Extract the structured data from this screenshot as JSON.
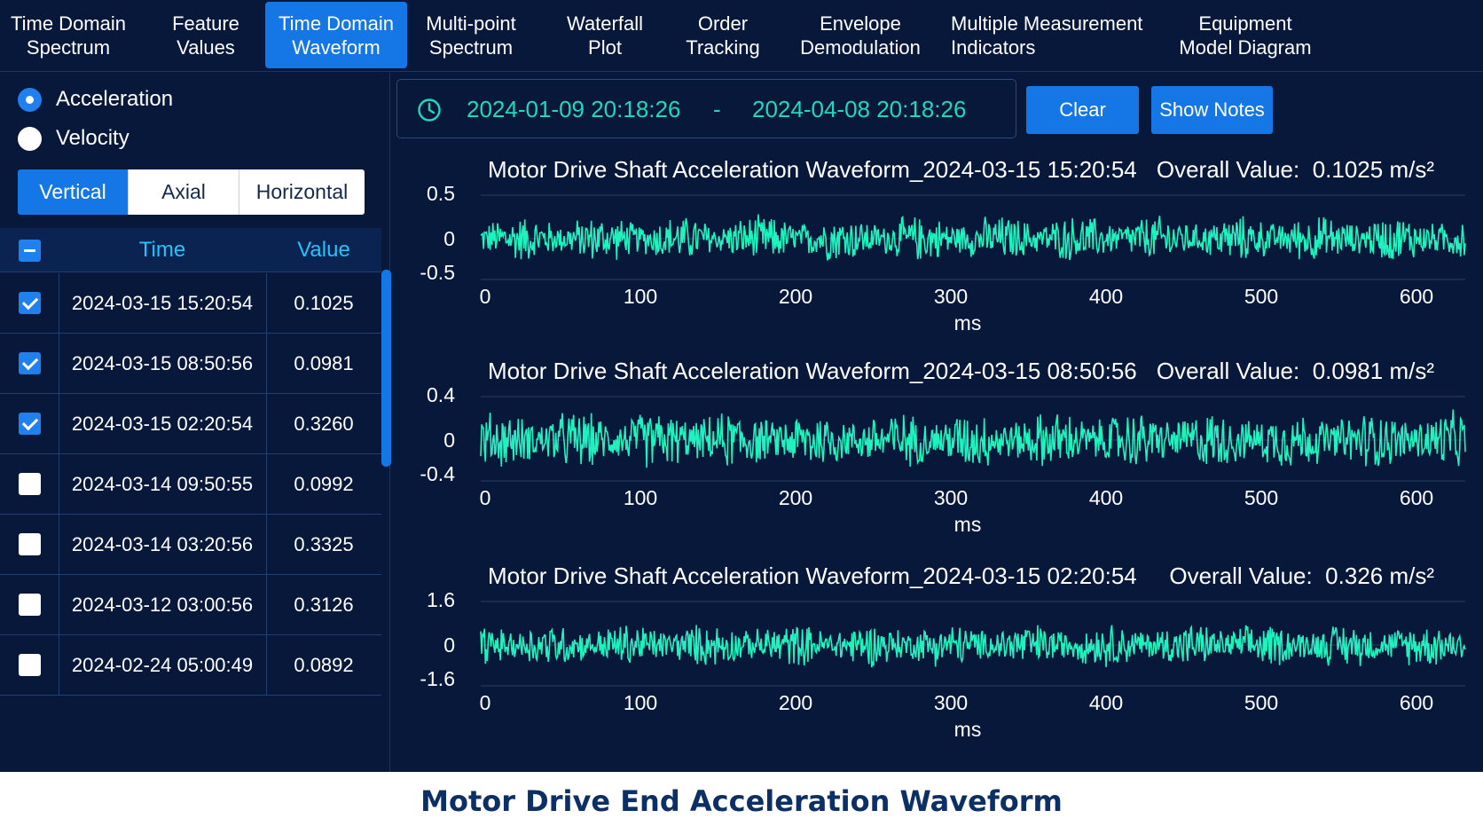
{
  "nav": {
    "tabs": [
      {
        "label": "Time Domain\nSpectrum",
        "active": false
      },
      {
        "label": "Feature\nValues",
        "active": false
      },
      {
        "label": "Time Domain\nWaveform",
        "active": true
      },
      {
        "label": "Multi-point\nSpectrum",
        "active": false
      },
      {
        "label": "Waterfall\nPlot",
        "active": false
      },
      {
        "label": "Order\nTracking",
        "active": false
      },
      {
        "label": "Envelope\nDemodulation",
        "active": false
      },
      {
        "label": "Multiple Measurement\nIndicators",
        "active": false
      },
      {
        "label": "Equipment\nModel Diagram",
        "active": false
      }
    ]
  },
  "left": {
    "measure": {
      "options": [
        "Acceleration",
        "Velocity"
      ],
      "selected": "Acceleration"
    },
    "directions": {
      "options": [
        "Vertical",
        "Axial",
        "Horizontal"
      ],
      "selected": "Vertical"
    },
    "table": {
      "header": {
        "time": "Time",
        "value": "Value",
        "select_all": "partial"
      },
      "rows": [
        {
          "time": "2024-03-15 15:20:54",
          "value": "0.1025",
          "checked": true
        },
        {
          "time": "2024-03-15 08:50:56",
          "value": "0.0981",
          "checked": true
        },
        {
          "time": "2024-03-15 02:20:54",
          "value": "0.3260",
          "checked": true
        },
        {
          "time": "2024-03-14 09:50:55",
          "value": "0.0992",
          "checked": false
        },
        {
          "time": "2024-03-14 03:20:56",
          "value": "0.3325",
          "checked": false
        },
        {
          "time": "2024-03-12 03:00:56",
          "value": "0.3126",
          "checked": false
        },
        {
          "time": "2024-02-24 05:00:49",
          "value": "0.0892",
          "checked": false
        }
      ]
    }
  },
  "toolbar": {
    "clock_icon": "clock-icon",
    "start": "2024-01-09 20:18:26",
    "separator": "-",
    "end": "2024-04-08 20:18:26",
    "clear_label": "Clear",
    "notes_label": "Show Notes"
  },
  "colors": {
    "bg": "#07183b",
    "accent": "#1577e6",
    "wave": "#1ff2bf",
    "date": "#1fd9ba",
    "header": "#1ec5ff"
  },
  "footer": {
    "title": "Motor Drive End Acceleration Waveform"
  },
  "chart_data": [
    {
      "type": "line",
      "title": "Motor Drive Shaft Acceleration Waveform_2024-03-15 15:20:54",
      "overall_label": "Overall Value:",
      "overall_value": "0.1025 m/s²",
      "xlabel": "ms",
      "xlim": [
        0,
        635
      ],
      "xticks": [
        "0",
        "100",
        "200",
        "300",
        "400",
        "500",
        "600"
      ],
      "ylim": [
        -0.5,
        0.5
      ],
      "yticks": [
        "0.5",
        "0",
        "-0.5"
      ],
      "amplitude": 0.3,
      "grid": true
    },
    {
      "type": "line",
      "title": "Motor Drive Shaft Acceleration Waveform_2024-03-15 08:50:56",
      "overall_label": "Overall Value:",
      "overall_value": "0.0981 m/s²",
      "xlabel": "ms",
      "xlim": [
        0,
        635
      ],
      "xticks": [
        "0",
        "100",
        "200",
        "300",
        "400",
        "500",
        "600"
      ],
      "ylim": [
        -0.4,
        0.4
      ],
      "yticks": [
        "0.4",
        "0",
        "-0.4"
      ],
      "amplitude": 0.3,
      "grid": true
    },
    {
      "type": "line",
      "title": "Motor Drive Shaft Acceleration Waveform_2024-03-15 02:20:54",
      "overall_label": "Overall Value:",
      "overall_value": "0.326 m/s²",
      "xlabel": "ms",
      "xlim": [
        0,
        635
      ],
      "xticks": [
        "0",
        "100",
        "200",
        "300",
        "400",
        "500",
        "600"
      ],
      "ylim": [
        -1.6,
        1.6
      ],
      "yticks": [
        "1.6",
        "0",
        "-1.6"
      ],
      "amplitude": 0.9,
      "grid": true
    }
  ]
}
